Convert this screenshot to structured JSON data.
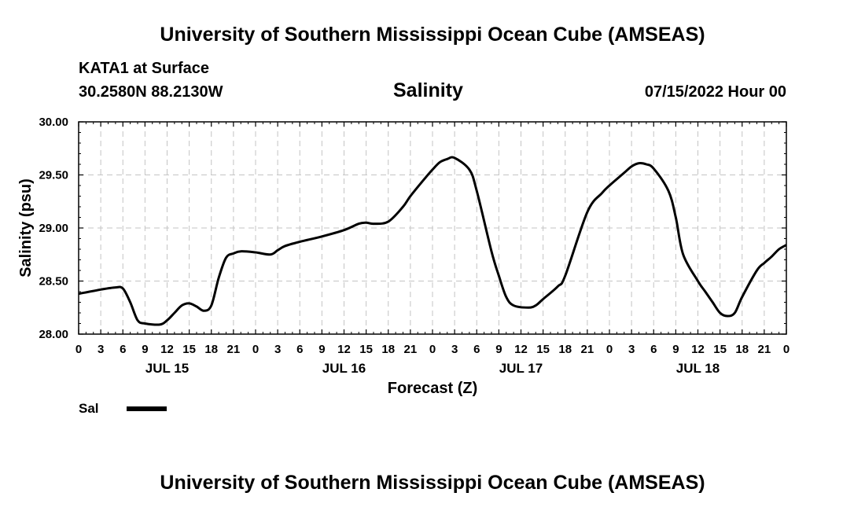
{
  "header": {
    "title": "University of Southern Mississippi Ocean Cube (AMSEAS)",
    "station": "KATA1 at Surface",
    "coords": "30.2580N  88.2130W",
    "variable": "Salinity",
    "run_time": "07/15/2022 Hour 00"
  },
  "footer": {
    "title": "University of Southern Mississippi Ocean Cube (AMSEAS)"
  },
  "chart_data": {
    "type": "line",
    "title": "Salinity",
    "xlabel": "Forecast (Z)",
    "ylabel": "Salinity (psu)",
    "ylim": [
      28.0,
      30.0
    ],
    "xlim": [
      0,
      96
    ],
    "yticks": [
      "28.00",
      "28.50",
      "29.00",
      "29.50",
      "30.00"
    ],
    "ytick_values": [
      28.0,
      28.5,
      29.0,
      29.5,
      30.0
    ],
    "xtick_labels": [
      "0",
      "3",
      "6",
      "9",
      "12",
      "15",
      "18",
      "21",
      "0",
      "3",
      "6",
      "9",
      "12",
      "15",
      "18",
      "21",
      "0",
      "3",
      "6",
      "9",
      "12",
      "15",
      "18",
      "21",
      "0",
      "3",
      "6",
      "9",
      "12",
      "15",
      "18",
      "21",
      "0"
    ],
    "day_labels": [
      {
        "label": "JUL 15",
        "hour": 12
      },
      {
        "label": "JUL 16",
        "hour": 36
      },
      {
        "label": "JUL 17",
        "hour": 60
      },
      {
        "label": "JUL 18",
        "hour": 84
      }
    ],
    "grid": true,
    "legend": [
      {
        "name": "Sal",
        "color": "#000000"
      }
    ],
    "series": [
      {
        "name": "Sal",
        "color": "#000000",
        "x": [
          0,
          3,
          5,
          6,
          7,
          8,
          9,
          11,
          12,
          13,
          14,
          15,
          16,
          17,
          18,
          19,
          20,
          21,
          22,
          24,
          26,
          27,
          28,
          30,
          33,
          36,
          38,
          39,
          40,
          42,
          44,
          45,
          47,
          48,
          49,
          50,
          51,
          53,
          54,
          56,
          57,
          58,
          59,
          61,
          62,
          63,
          65,
          66,
          69,
          71,
          72,
          74,
          75,
          76,
          77,
          78,
          80,
          81,
          82,
          84,
          85,
          86,
          87,
          88,
          89,
          90,
          92,
          93,
          94,
          95,
          96
        ],
        "values": [
          28.38,
          28.42,
          28.44,
          28.43,
          28.3,
          28.13,
          28.1,
          28.09,
          28.13,
          28.2,
          28.27,
          28.29,
          28.26,
          28.22,
          28.27,
          28.53,
          28.72,
          28.76,
          28.78,
          28.77,
          28.75,
          28.79,
          28.83,
          28.87,
          28.92,
          28.98,
          29.04,
          29.05,
          29.04,
          29.06,
          29.2,
          29.3,
          29.47,
          29.55,
          29.62,
          29.65,
          29.66,
          29.55,
          29.35,
          28.78,
          28.55,
          28.35,
          28.27,
          28.25,
          28.27,
          28.33,
          28.45,
          28.55,
          29.15,
          29.33,
          29.4,
          29.52,
          29.58,
          29.61,
          29.6,
          29.56,
          29.35,
          29.1,
          28.75,
          28.5,
          28.4,
          28.3,
          28.2,
          28.17,
          28.2,
          28.35,
          28.6,
          28.67,
          28.73,
          28.8,
          28.84
        ]
      }
    ]
  }
}
